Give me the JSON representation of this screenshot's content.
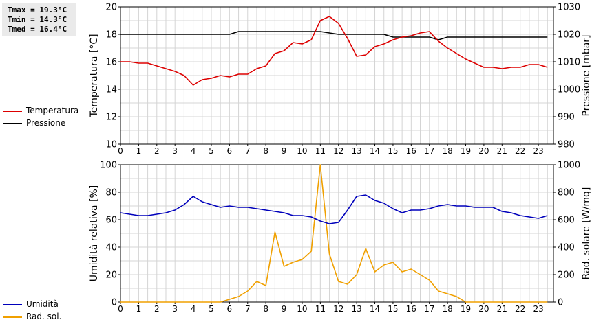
{
  "stats": {
    "tmax": "Tmax = 19.3°C",
    "tmin": "Tmin = 14.3°C",
    "tmed": "Tmed = 16.4°C"
  },
  "colors": {
    "temperature": "#dd0000",
    "pressure": "#000000",
    "humidity": "#0000bb",
    "radiation": "#f0a000"
  },
  "legend_top": {
    "temperature": "Temperatura",
    "pressure": "Pressione"
  },
  "legend_bottom": {
    "humidity": "Umidità",
    "radiation": "Rad. sol."
  },
  "chart_data": [
    {
      "type": "line",
      "x_ticks": [
        0,
        1,
        2,
        3,
        4,
        5,
        6,
        7,
        8,
        9,
        10,
        11,
        12,
        13,
        14,
        15,
        16,
        17,
        18,
        19,
        20,
        21,
        22,
        23
      ],
      "xlim": [
        0,
        23.83
      ],
      "grid": true,
      "ylabel": "Temperatura [°C]",
      "ylim": [
        10,
        20
      ],
      "y_ticks": [
        10,
        12,
        14,
        16,
        18,
        20
      ],
      "ylabel_right": "Pressione [mbar]",
      "ylim_right": [
        980,
        1030
      ],
      "y_ticks_right": [
        980,
        990,
        1000,
        1010,
        1020,
        1030
      ],
      "series": [
        {
          "name": "Temperatura",
          "axis": "left",
          "color": "#dd0000",
          "x": [
            0,
            0.5,
            1,
            1.5,
            2,
            2.5,
            3,
            3.5,
            4,
            4.5,
            5,
            5.5,
            6,
            6.5,
            7,
            7.5,
            8,
            8.5,
            9,
            9.5,
            10,
            10.5,
            11,
            11.5,
            12,
            12.5,
            13,
            13.5,
            14,
            14.5,
            15,
            15.5,
            16,
            16.5,
            17,
            17.5,
            18,
            18.5,
            19,
            19.5,
            20,
            20.5,
            21,
            21.5,
            22,
            22.5,
            23,
            23.5
          ],
          "values": [
            16.0,
            16.0,
            15.9,
            15.9,
            15.7,
            15.5,
            15.3,
            15.0,
            14.3,
            14.7,
            14.8,
            15.0,
            14.9,
            15.1,
            15.1,
            15.5,
            15.7,
            16.6,
            16.8,
            17.4,
            17.3,
            17.6,
            19.0,
            19.3,
            18.8,
            17.7,
            16.4,
            16.5,
            17.1,
            17.3,
            17.6,
            17.8,
            17.9,
            18.1,
            18.2,
            17.5,
            17.0,
            16.6,
            16.2,
            15.9,
            15.6,
            15.6,
            15.5,
            15.6,
            15.6,
            15.8,
            15.8,
            15.6
          ]
        },
        {
          "name": "Pressione",
          "axis": "right",
          "color": "#000000",
          "x": [
            0,
            6,
            6.5,
            11,
            11.5,
            12,
            14.5,
            15,
            17,
            17.5,
            18,
            23.5
          ],
          "values": [
            1020,
            1020,
            1021,
            1021,
            1020.5,
            1020,
            1020,
            1019,
            1019,
            1018,
            1019,
            1019
          ]
        }
      ]
    },
    {
      "type": "line",
      "x_ticks": [
        0,
        1,
        2,
        3,
        4,
        5,
        6,
        7,
        8,
        9,
        10,
        11,
        12,
        13,
        14,
        15,
        16,
        17,
        18,
        19,
        20,
        21,
        22,
        23
      ],
      "xlim": [
        0,
        23.83
      ],
      "grid": true,
      "ylabel": "Umidità relativa [%]",
      "ylim": [
        0,
        100
      ],
      "y_ticks": [
        0,
        20,
        40,
        60,
        80,
        100
      ],
      "ylabel_right": "Rad. solare [W/mq]",
      "ylim_right": [
        0,
        1000
      ],
      "y_ticks_right": [
        0,
        200,
        400,
        600,
        800,
        1000
      ],
      "series": [
        {
          "name": "Umidità",
          "axis": "left",
          "color": "#0000bb",
          "x": [
            0,
            0.5,
            1,
            1.5,
            2,
            2.5,
            3,
            3.5,
            4,
            4.5,
            5,
            5.5,
            6,
            6.5,
            7,
            7.5,
            8,
            8.5,
            9,
            9.5,
            10,
            10.5,
            11,
            11.5,
            12,
            12.5,
            13,
            13.5,
            14,
            14.5,
            15,
            15.5,
            16,
            16.5,
            17,
            17.5,
            18,
            18.5,
            19,
            19.5,
            20,
            20.5,
            21,
            21.5,
            22,
            22.5,
            23,
            23.5
          ],
          "values": [
            65,
            64,
            63,
            63,
            64,
            65,
            67,
            71,
            77,
            73,
            71,
            69,
            70,
            69,
            69,
            68,
            67,
            66,
            65,
            63,
            63,
            62,
            59,
            57,
            58,
            67,
            77,
            78,
            74,
            72,
            68,
            65,
            67,
            67,
            68,
            70,
            71,
            70,
            70,
            69,
            69,
            69,
            66,
            65,
            63,
            62,
            61,
            63
          ]
        },
        {
          "name": "Rad. sol.",
          "axis": "right",
          "color": "#f0a000",
          "x": [
            0,
            5.5,
            6,
            6.5,
            7,
            7.5,
            8,
            8.5,
            9,
            9.5,
            10,
            10.5,
            11,
            11.5,
            12,
            12.5,
            13,
            13.5,
            14,
            14.5,
            15,
            15.5,
            16,
            16.5,
            17,
            17.5,
            18,
            18.5,
            19,
            23.5
          ],
          "values": [
            0,
            0,
            20,
            40,
            80,
            150,
            120,
            510,
            260,
            290,
            310,
            370,
            1000,
            350,
            150,
            130,
            200,
            390,
            220,
            270,
            290,
            220,
            240,
            200,
            160,
            80,
            60,
            40,
            0,
            0
          ]
        }
      ]
    }
  ]
}
